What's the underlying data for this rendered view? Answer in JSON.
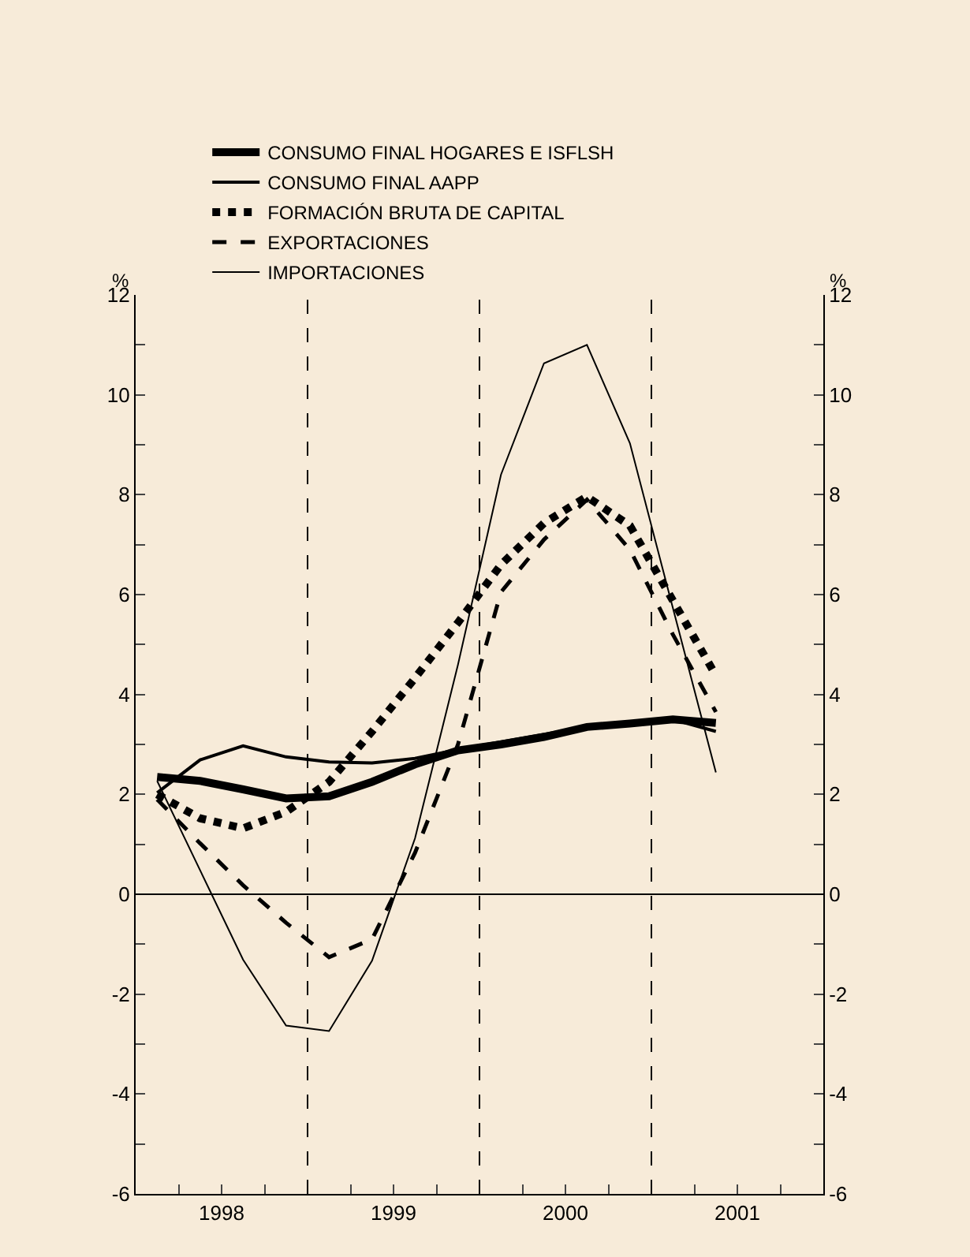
{
  "chart_data": {
    "type": "line",
    "x": [
      1998.125,
      1998.375,
      1998.625,
      1998.875,
      1999.125,
      1999.375,
      1999.625,
      1999.875,
      2000.125,
      2000.375,
      2000.625,
      2000.875,
      2001.125,
      2001.375
    ],
    "series": [
      {
        "name": "CONSUMO FINAL HOGARES E ISFLSH",
        "color": "#000000",
        "line_style": "solid",
        "values": [
          2.35,
          2.27,
          2.1,
          1.92,
          1.96,
          2.25,
          2.6,
          2.88,
          3.0,
          3.15,
          3.35,
          3.42,
          3.5,
          3.43
        ]
      },
      {
        "name": "CONSUMO FINAL AAPP",
        "color": "#000000",
        "line_style": "solid",
        "values": [
          2.03,
          2.69,
          2.97,
          2.75,
          2.65,
          2.63,
          2.72,
          2.9,
          3.05,
          3.2,
          3.35,
          3.45,
          3.5,
          3.26
        ]
      },
      {
        "name": "FORMACIÓN BRUTA DE CAPITAL",
        "color": "#000000",
        "line_style": "dotted",
        "values": [
          2.0,
          1.52,
          1.32,
          1.65,
          2.25,
          3.26,
          4.33,
          5.44,
          6.6,
          7.43,
          7.96,
          7.38,
          5.88,
          4.38
        ]
      },
      {
        "name": "EXPORTACIONES",
        "color": "#000000",
        "line_style": "dashed",
        "values": [
          1.9,
          1.02,
          0.18,
          -0.57,
          -1.26,
          -0.9,
          0.83,
          3.0,
          6.05,
          7.1,
          7.9,
          6.9,
          5.2,
          3.65
        ]
      },
      {
        "name": "IMPORTACIONES",
        "color": "#000000",
        "line_style": "solid",
        "values": [
          2.27,
          0.48,
          -1.31,
          -2.63,
          -2.74,
          -1.33,
          1.12,
          4.6,
          8.4,
          10.63,
          11.0,
          9.03,
          5.73,
          2.44
        ]
      }
    ],
    "ylabel": "%",
    "y2label": "%",
    "xlim": [
      1998,
      2002
    ],
    "xticks": [
      {
        "value": 1998.25,
        "label": null
      },
      {
        "value": 1998.5,
        "label": "1998"
      },
      {
        "value": 1998.75,
        "label": null
      },
      {
        "value": 1999,
        "label": null
      },
      {
        "value": 1999.25,
        "label": null
      },
      {
        "value": 1999.5,
        "label": "1999"
      },
      {
        "value": 1999.75,
        "label": null
      },
      {
        "value": 2000,
        "label": null
      },
      {
        "value": 2000.25,
        "label": null
      },
      {
        "value": 2000.5,
        "label": "2000"
      },
      {
        "value": 2000.75,
        "label": null
      },
      {
        "value": 2001,
        "label": null
      },
      {
        "value": 2001.25,
        "label": null
      },
      {
        "value": 2001.5,
        "label": "2001"
      },
      {
        "value": 2001.75,
        "label": null
      }
    ],
    "ylim": [
      -6,
      12
    ],
    "yticks": [
      -6,
      {
        "value": -5,
        "label": null
      },
      -4,
      {
        "value": -3,
        "label": null
      },
      -2,
      {
        "value": -1,
        "label": null
      },
      0,
      {
        "value": 1,
        "label": null
      },
      2,
      {
        "value": 3,
        "label": null
      },
      4,
      {
        "value": 5,
        "label": null
      },
      6,
      {
        "value": 7,
        "label": null
      },
      8,
      {
        "value": 9,
        "label": null
      },
      10,
      {
        "value": 11,
        "label": null
      },
      12
    ],
    "y2lim": [
      -6,
      12
    ],
    "y2ticks": [
      -6,
      {
        "value": -5,
        "label": null
      },
      -4,
      {
        "value": -3,
        "label": null
      },
      -2,
      {
        "value": -1,
        "label": null
      },
      0,
      {
        "value": 1,
        "label": null
      },
      2,
      {
        "value": 3,
        "label": null
      },
      4,
      {
        "value": 5,
        "label": null
      },
      6,
      {
        "value": 7,
        "label": null
      },
      8,
      {
        "value": 9,
        "label": null
      },
      10,
      {
        "value": 11,
        "label": null
      },
      12
    ],
    "ref_lines": [
      {
        "axis": "x",
        "value": 1999,
        "color": "#000000",
        "line_style": "dashed"
      },
      {
        "axis": "x",
        "value": 2000,
        "color": "#000000",
        "line_style": "dashed"
      },
      {
        "axis": "x",
        "value": 2001,
        "color": "#000000",
        "line_style": "dashed"
      },
      {
        "axis": "y",
        "value": 0,
        "color": "#000000",
        "line_style": "solid"
      }
    ],
    "grid": false,
    "legend": "top",
    "marker": "none"
  }
}
